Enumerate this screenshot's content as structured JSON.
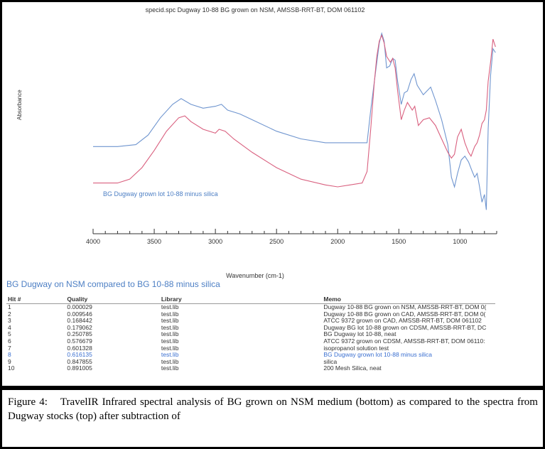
{
  "chart_data": {
    "type": "line",
    "title": "specid.spc Dugway 10-88 BG grown on NSM, AMSSB-RRT-BT, DOM 061102",
    "xlabel": "Wavenumber (cm-1)",
    "ylabel": "Absorbance",
    "xlim": [
      4000,
      700
    ],
    "x_reversed": true,
    "xticks": [
      4000,
      3500,
      3000,
      2500,
      2000,
      1500,
      1000
    ],
    "ylim": [
      0,
      1
    ],
    "annotation": "BG Dugway grown lot 10-88 minus silica",
    "series": [
      {
        "name": "",
        "color": "#6f95cf",
        "points": [
          [
            4000,
            0.41
          ],
          [
            3800,
            0.41
          ],
          [
            3650,
            0.42
          ],
          [
            3550,
            0.47
          ],
          [
            3450,
            0.56
          ],
          [
            3350,
            0.63
          ],
          [
            3280,
            0.66
          ],
          [
            3200,
            0.63
          ],
          [
            3100,
            0.61
          ],
          [
            3000,
            0.62
          ],
          [
            2950,
            0.63
          ],
          [
            2900,
            0.6
          ],
          [
            2800,
            0.58
          ],
          [
            2700,
            0.55
          ],
          [
            2500,
            0.49
          ],
          [
            2300,
            0.45
          ],
          [
            2100,
            0.43
          ],
          [
            1900,
            0.43
          ],
          [
            1760,
            0.43
          ],
          [
            1730,
            0.6
          ],
          [
            1690,
            0.8
          ],
          [
            1660,
            0.95
          ],
          [
            1640,
            1.0
          ],
          [
            1620,
            0.96
          ],
          [
            1600,
            0.82
          ],
          [
            1575,
            0.83
          ],
          [
            1550,
            0.87
          ],
          [
            1530,
            0.86
          ],
          [
            1510,
            0.75
          ],
          [
            1480,
            0.63
          ],
          [
            1455,
            0.69
          ],
          [
            1430,
            0.7
          ],
          [
            1400,
            0.76
          ],
          [
            1375,
            0.79
          ],
          [
            1350,
            0.73
          ],
          [
            1300,
            0.68
          ],
          [
            1240,
            0.72
          ],
          [
            1200,
            0.65
          ],
          [
            1150,
            0.55
          ],
          [
            1100,
            0.42
          ],
          [
            1070,
            0.25
          ],
          [
            1045,
            0.2
          ],
          [
            1020,
            0.27
          ],
          [
            990,
            0.34
          ],
          [
            960,
            0.36
          ],
          [
            930,
            0.33
          ],
          [
            900,
            0.28
          ],
          [
            880,
            0.25
          ],
          [
            860,
            0.27
          ],
          [
            840,
            0.2
          ],
          [
            820,
            0.12
          ],
          [
            800,
            0.16
          ],
          [
            785,
            0.08
          ],
          [
            770,
            0.5
          ],
          [
            750,
            0.78
          ],
          [
            730,
            0.92
          ],
          [
            710,
            0.9
          ]
        ]
      },
      {
        "name": "",
        "color": "#d9607f",
        "points": [
          [
            4000,
            0.22
          ],
          [
            3900,
            0.22
          ],
          [
            3800,
            0.22
          ],
          [
            3700,
            0.24
          ],
          [
            3600,
            0.3
          ],
          [
            3500,
            0.39
          ],
          [
            3400,
            0.49
          ],
          [
            3300,
            0.56
          ],
          [
            3250,
            0.57
          ],
          [
            3200,
            0.54
          ],
          [
            3100,
            0.5
          ],
          [
            3000,
            0.48
          ],
          [
            2970,
            0.5
          ],
          [
            2920,
            0.49
          ],
          [
            2850,
            0.45
          ],
          [
            2700,
            0.38
          ],
          [
            2500,
            0.3
          ],
          [
            2300,
            0.24
          ],
          [
            2100,
            0.21
          ],
          [
            2000,
            0.2
          ],
          [
            1900,
            0.21
          ],
          [
            1800,
            0.22
          ],
          [
            1760,
            0.28
          ],
          [
            1730,
            0.5
          ],
          [
            1700,
            0.75
          ],
          [
            1680,
            0.88
          ],
          [
            1660,
            0.96
          ],
          [
            1640,
            0.99
          ],
          [
            1620,
            0.95
          ],
          [
            1600,
            0.88
          ],
          [
            1570,
            0.85
          ],
          [
            1550,
            0.87
          ],
          [
            1530,
            0.82
          ],
          [
            1510,
            0.7
          ],
          [
            1480,
            0.55
          ],
          [
            1455,
            0.6
          ],
          [
            1430,
            0.64
          ],
          [
            1410,
            0.62
          ],
          [
            1390,
            0.6
          ],
          [
            1370,
            0.62
          ],
          [
            1340,
            0.52
          ],
          [
            1300,
            0.55
          ],
          [
            1250,
            0.56
          ],
          [
            1200,
            0.52
          ],
          [
            1150,
            0.45
          ],
          [
            1100,
            0.38
          ],
          [
            1070,
            0.35
          ],
          [
            1045,
            0.37
          ],
          [
            1020,
            0.46
          ],
          [
            990,
            0.5
          ],
          [
            960,
            0.43
          ],
          [
            930,
            0.38
          ],
          [
            910,
            0.36
          ],
          [
            880,
            0.41
          ],
          [
            860,
            0.43
          ],
          [
            840,
            0.47
          ],
          [
            820,
            0.53
          ],
          [
            800,
            0.55
          ],
          [
            785,
            0.6
          ],
          [
            770,
            0.75
          ],
          [
            750,
            0.85
          ],
          [
            730,
            0.97
          ],
          [
            710,
            0.93
          ]
        ]
      }
    ]
  },
  "table": {
    "subtitle": "BG Dugway on NSM compared to BG 10-88 minus silica",
    "headers": [
      "Hit #",
      "Quality",
      "Library",
      "Memo"
    ],
    "rows": [
      [
        "1",
        "0.000029",
        "test.lib",
        "Dugway 10-88 BG grown on NSM, AMSSB-RRT-BT, DOM 0("
      ],
      [
        "2",
        "0.009546",
        "test.lib",
        "Dugway 10-88 BG grown on CAD, AMSSB-RRT-BT, DOM 0("
      ],
      [
        "3",
        "0.168442",
        "test.lib",
        "ATCC 9372 grown on CAD, AMSSB-RRT-BT, DOM 061102"
      ],
      [
        "4",
        "0.179062",
        "test.lib",
        "Dugway BG lot 10-88 grown on CDSM, AMSSB-RRT-BT, DC"
      ],
      [
        "5",
        "0.250785",
        "test.lib",
        "BG Dugway lot 10-88, neat"
      ],
      [
        "6",
        "0.576679",
        "test.lib",
        "ATCC 9372 grown on CDSM, AMSSB-RRT-BT, DOM 06110:"
      ],
      [
        "7",
        "0.601328",
        "test.lib",
        "isopropanol solution test"
      ],
      [
        "8",
        "0.616135",
        "test.lib",
        "BG Dugway grown lot 10-88 minus silica"
      ],
      [
        "9",
        "0.847855",
        "test.lib",
        "silica"
      ],
      [
        "10",
        "0.891005",
        "test.lib",
        "200 Mesh Silica, neat"
      ]
    ],
    "selected_row": 7,
    "selected_color": "#3a6fd0"
  },
  "caption": {
    "label": "Figure 4:",
    "text": "TravelIR Infrared spectral analysis of BG grown on NSM medium (bottom) as compared to the spectra from Dugway stocks (top) after subtraction of"
  }
}
